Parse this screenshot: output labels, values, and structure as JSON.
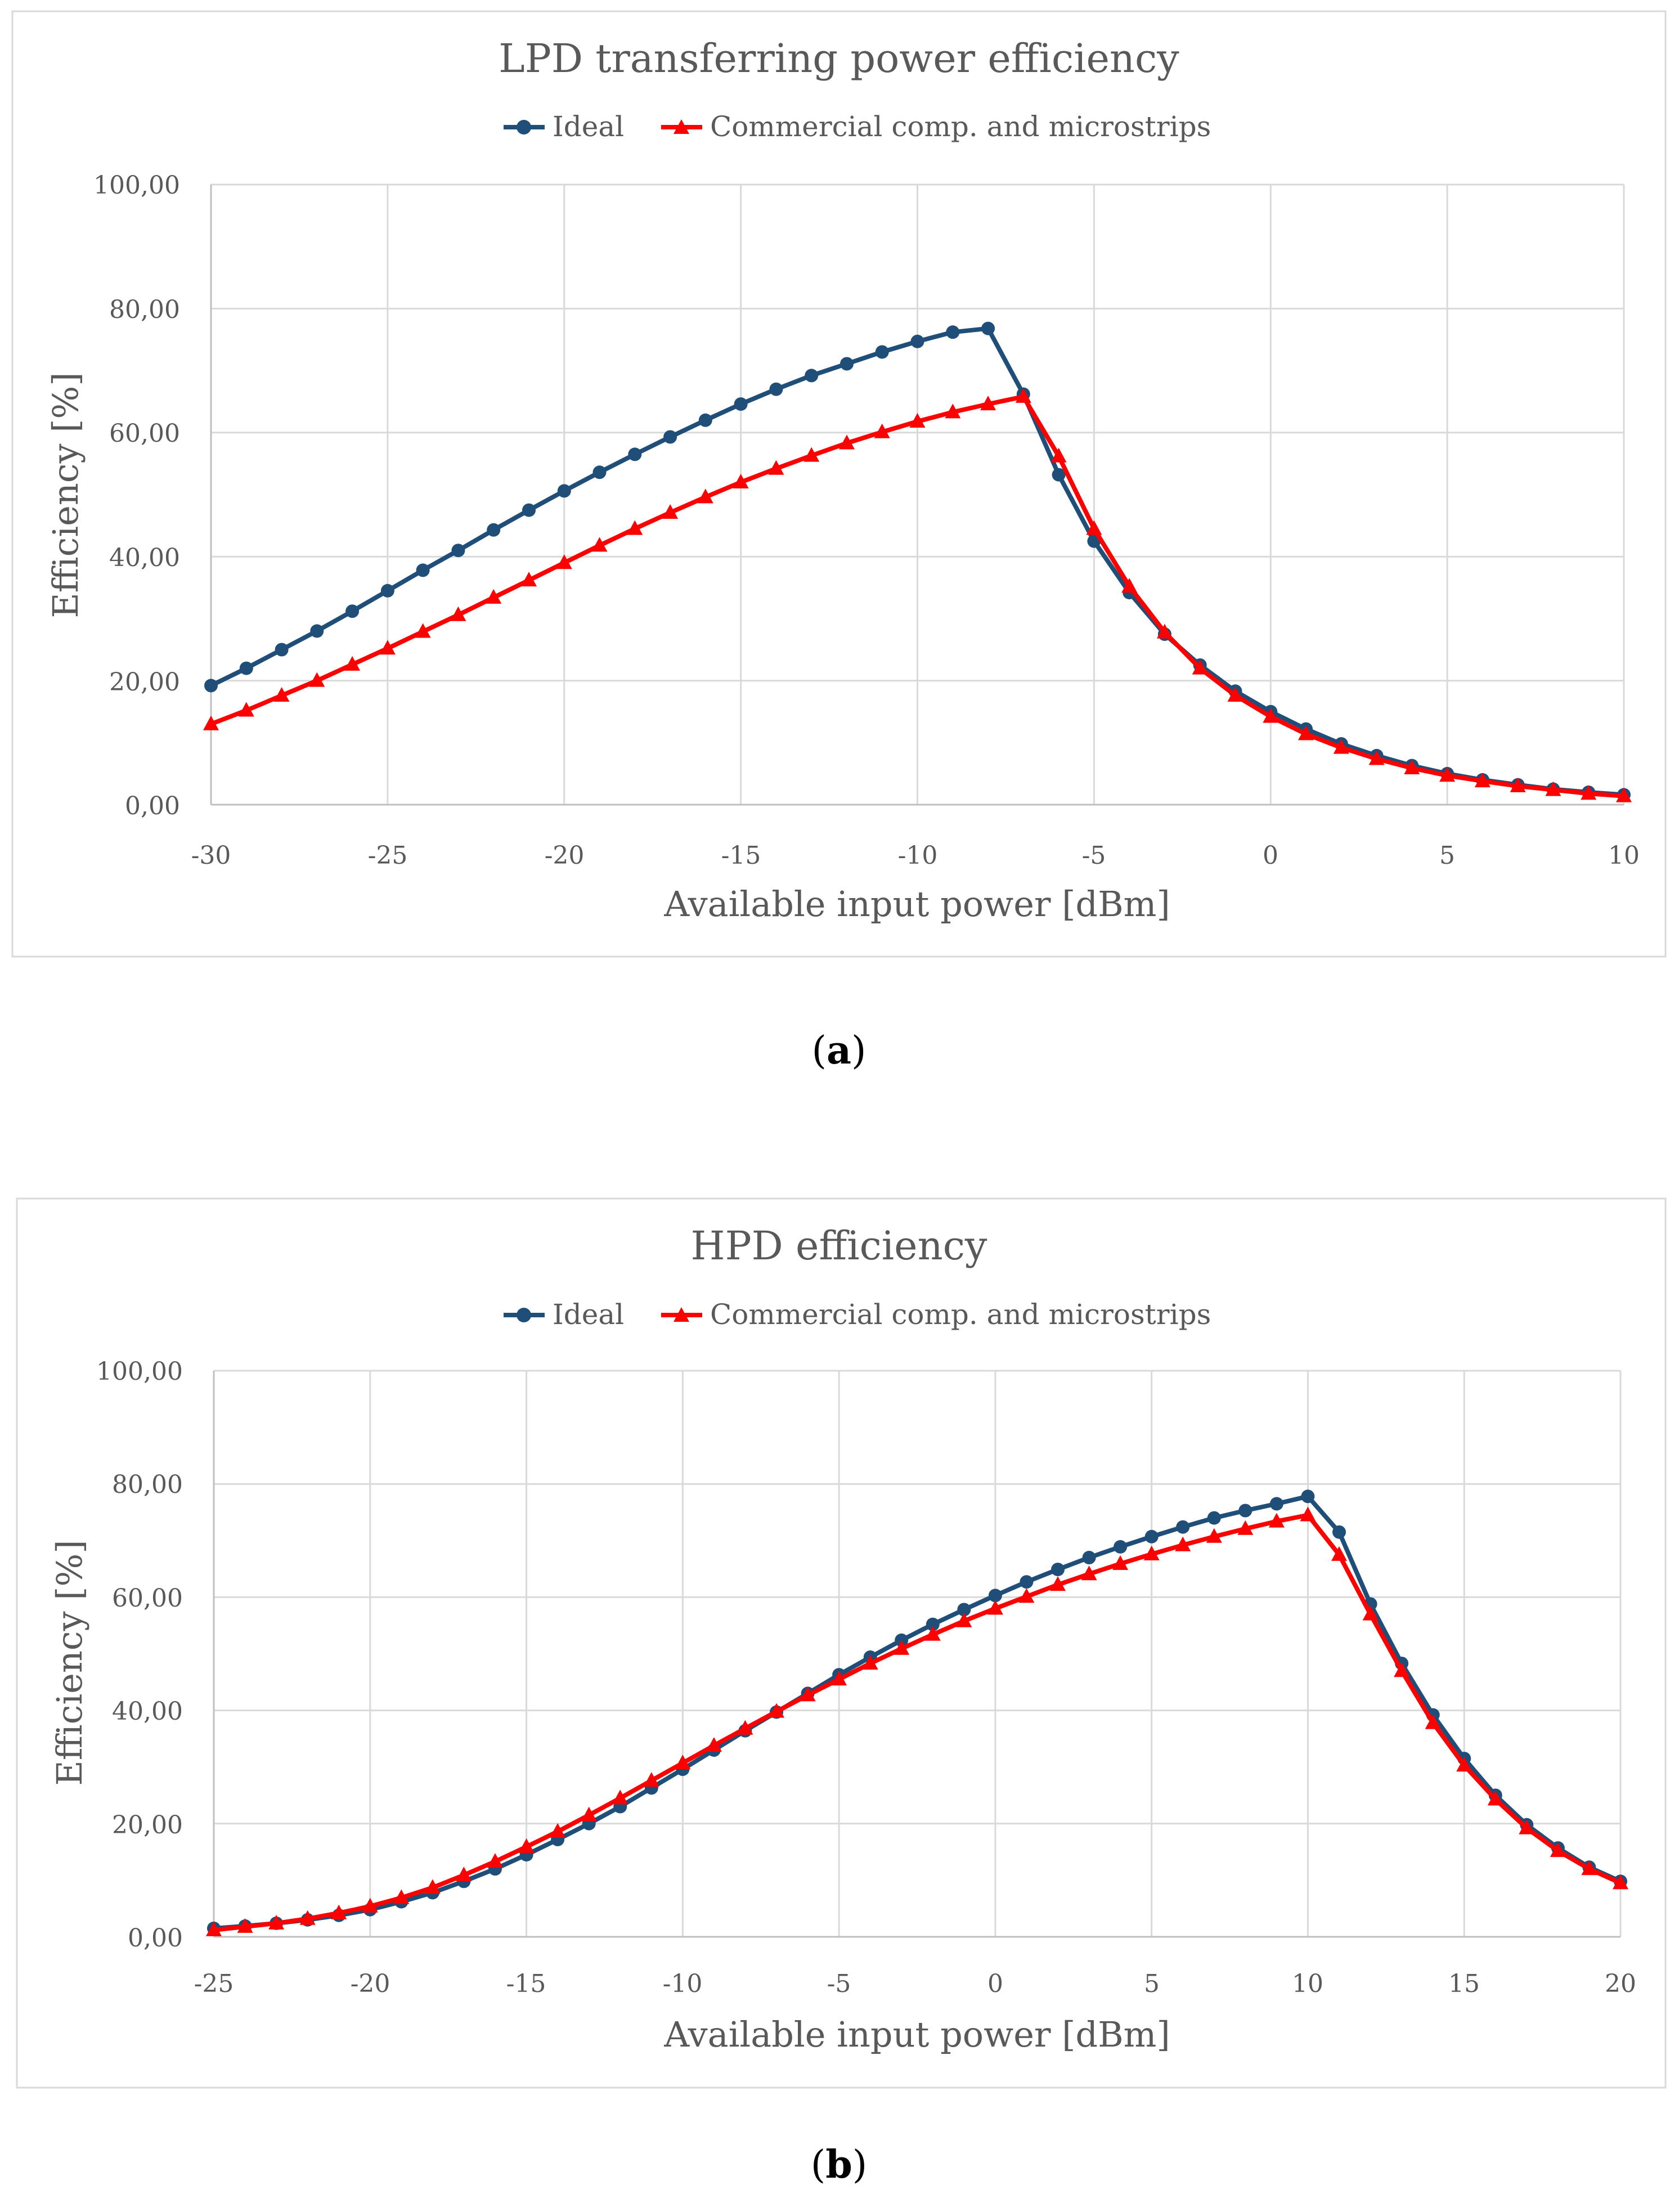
{
  "colors": {
    "ideal": "#1f4e79",
    "commercial": "#ff0000"
  },
  "chart_data": [
    {
      "type": "line",
      "title": "LPD transferring power efficiency",
      "xlabel": "Available input power [dBm]",
      "ylabel": "Efficiency [%]",
      "xlim": [
        -30,
        10
      ],
      "ylim": [
        0,
        100
      ],
      "xticks": [
        "-30",
        "-25",
        "-20",
        "-15",
        "-10",
        "-5",
        "0",
        "5",
        "10"
      ],
      "yticks": [
        "0,00",
        "20,00",
        "40,00",
        "60,00",
        "80,00",
        "100,00"
      ],
      "legend": [
        "Ideal",
        "Commercial comp. and microstrips"
      ],
      "x": [
        -30,
        -29,
        -28,
        -27,
        -26,
        -25,
        -24,
        -23,
        -22,
        -21,
        -20,
        -19,
        -18,
        -17,
        -16,
        -15,
        -14,
        -13,
        -12,
        -11,
        -10,
        -9,
        -8,
        -7,
        -6,
        -5,
        -4,
        -3,
        -2,
        -1,
        0,
        1,
        2,
        3,
        4,
        5,
        6,
        7,
        8,
        9,
        10
      ],
      "series": [
        {
          "name": "Ideal",
          "marker": "circle",
          "values": [
            19.2,
            22.0,
            25.0,
            28.0,
            31.2,
            34.5,
            37.8,
            41.0,
            44.3,
            47.5,
            50.6,
            53.6,
            56.5,
            59.3,
            62.0,
            64.6,
            67.0,
            69.2,
            71.1,
            73.0,
            74.7,
            76.2,
            76.8,
            66.2,
            53.2,
            42.5,
            34.2,
            27.5,
            22.5,
            18.3,
            15.0,
            12.2,
            9.8,
            7.9,
            6.3,
            5.0,
            4.0,
            3.2,
            2.5,
            2.0,
            1.6
          ]
        },
        {
          "name": "Commercial comp. and microstrips",
          "marker": "triangle",
          "values": [
            13.0,
            15.2,
            17.6,
            20.0,
            22.6,
            25.2,
            27.9,
            30.6,
            33.4,
            36.2,
            39.0,
            41.8,
            44.5,
            47.1,
            49.6,
            52.0,
            54.2,
            56.3,
            58.3,
            60.1,
            61.8,
            63.3,
            64.6,
            65.8,
            56.2,
            44.5,
            35.2,
            27.8,
            22.0,
            17.6,
            14.2,
            11.4,
            9.2,
            7.4,
            5.9,
            4.7,
            3.8,
            3.0,
            2.4,
            1.8,
            1.4
          ]
        }
      ]
    },
    {
      "type": "line",
      "title": "HPD efficiency",
      "xlabel": "Available input power [dBm]",
      "ylabel": "Efficiency [%]",
      "xlim": [
        -25,
        20
      ],
      "ylim": [
        0,
        100
      ],
      "xticks": [
        "-25",
        "-20",
        "-15",
        "-10",
        "-5",
        "0",
        "5",
        "10",
        "15",
        "20"
      ],
      "yticks": [
        "0,00",
        "20,00",
        "40,00",
        "60,00",
        "80,00",
        "100,00"
      ],
      "legend": [
        "Ideal",
        "Commercial comp. and microstrips"
      ],
      "x": [
        -25,
        -24,
        -23,
        -22,
        -21,
        -20,
        -19,
        -18,
        -17,
        -16,
        -15,
        -14,
        -13,
        -12,
        -11,
        -10,
        -9,
        -8,
        -7,
        -6,
        -5,
        -4,
        -3,
        -2,
        -1,
        0,
        1,
        2,
        3,
        4,
        5,
        6,
        7,
        8,
        9,
        10,
        11,
        12,
        13,
        14,
        15,
        16,
        17,
        18,
        19,
        20
      ],
      "series": [
        {
          "name": "Ideal",
          "marker": "circle",
          "values": [
            1.5,
            1.9,
            2.4,
            3.0,
            3.8,
            4.8,
            6.2,
            7.8,
            9.8,
            12.0,
            14.5,
            17.2,
            20.0,
            23.0,
            26.3,
            29.6,
            33.0,
            36.4,
            39.7,
            43.0,
            46.3,
            49.4,
            52.4,
            55.2,
            57.8,
            60.3,
            62.7,
            64.9,
            67.0,
            68.9,
            70.7,
            72.4,
            74.0,
            75.3,
            76.5,
            77.8,
            71.5,
            58.8,
            48.3,
            39.2,
            31.5,
            25.0,
            19.8,
            15.7,
            12.3,
            9.8
          ]
        },
        {
          "name": "Commercial comp. and microstrips",
          "marker": "triangle",
          "values": [
            1.2,
            1.8,
            2.4,
            3.2,
            4.2,
            5.4,
            6.9,
            8.7,
            10.9,
            13.3,
            15.9,
            18.6,
            21.5,
            24.5,
            27.6,
            30.7,
            33.8,
            36.8,
            39.8,
            42.7,
            45.5,
            48.3,
            50.9,
            53.4,
            55.8,
            58.0,
            60.1,
            62.2,
            64.1,
            65.9,
            67.6,
            69.2,
            70.7,
            72.1,
            73.4,
            74.5,
            67.5,
            57.0,
            47.0,
            37.8,
            30.3,
            24.3,
            19.2,
            15.2,
            12.0,
            9.5
          ]
        }
      ]
    }
  ],
  "captions": {
    "a": "a",
    "b": "b"
  },
  "paren": {
    "open": "(",
    "close": ")"
  }
}
